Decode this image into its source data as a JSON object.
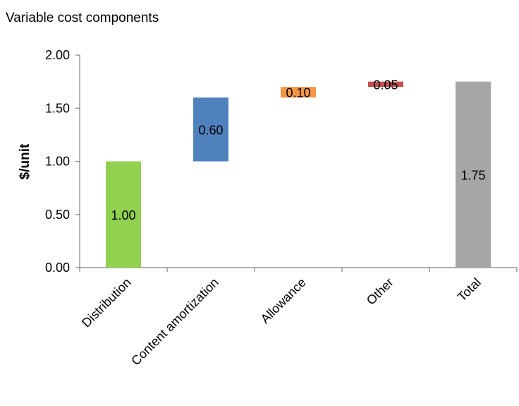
{
  "chart_data": {
    "type": "bar",
    "subtype": "waterfall",
    "title": "Variable cost components",
    "xlabel": "",
    "ylabel": "$/unit",
    "ylim": [
      0,
      2.0
    ],
    "yticks": [
      "0.00",
      "0.50",
      "1.00",
      "1.50",
      "2.00"
    ],
    "grid": false,
    "legend": "none",
    "categories": [
      "Distribution",
      "Content amortization",
      "Allowance",
      "Other",
      "Total"
    ],
    "values": [
      1.0,
      0.6,
      0.1,
      0.05,
      1.75
    ],
    "bases": [
      0,
      1.0,
      1.6,
      1.7,
      0
    ],
    "value_labels": [
      "1.00",
      "0.60",
      "0.10",
      "0.05",
      "1.75"
    ],
    "colors": [
      "#92D050",
      "#4F81BD",
      "#F79646",
      "#C0504D",
      "#A6A6A6"
    ]
  }
}
